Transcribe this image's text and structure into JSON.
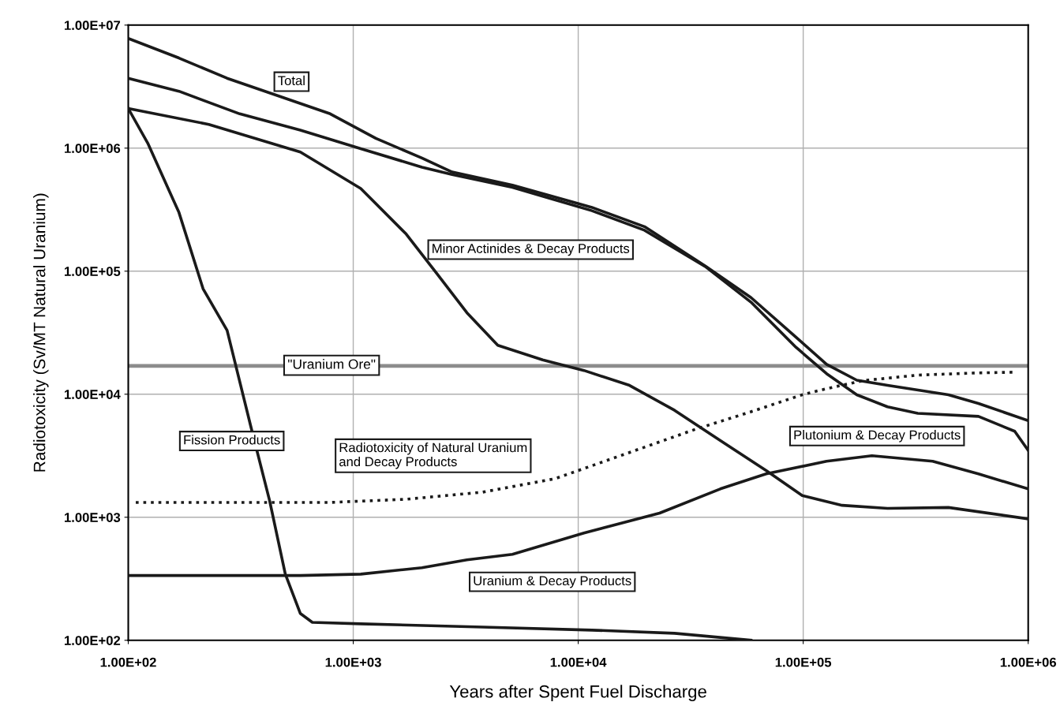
{
  "chart_data": {
    "type": "line",
    "xlabel": "Years after Spent Fuel Discharge",
    "ylabel": "Radiotoxicity (Sv/MT Natural Uranium)",
    "log": "xy",
    "xlim": [
      100,
      1000000
    ],
    "ylim": [
      100,
      10000000
    ],
    "xticks": [
      {
        "value": 100,
        "label": "1.00E+02"
      },
      {
        "value": 1000,
        "label": "1.00E+03"
      },
      {
        "value": 10000,
        "label": "1.00E+04"
      },
      {
        "value": 100000,
        "label": "1.00E+05"
      },
      {
        "value": 1000000,
        "label": "1.00E+06"
      }
    ],
    "yticks": [
      {
        "value": 100,
        "label": "1.00E+02"
      },
      {
        "value": 1000,
        "label": "1.00E+03"
      },
      {
        "value": 10000,
        "label": "1.00E+04"
      },
      {
        "value": 100000,
        "label": "1.00E+05"
      },
      {
        "value": 1000000,
        "label": "1.00E+06"
      },
      {
        "value": 10000000,
        "label": "1.00E+07"
      }
    ],
    "grid": true,
    "legend": false,
    "marker": "none",
    "line_style": "solid",
    "ref_lines": [
      {
        "axis": "y",
        "value": 17000,
        "label": "\"Uranium Ore\"",
        "color": "#8c8c8c",
        "line_style": "solid"
      }
    ],
    "series": [
      {
        "name": "Total",
        "color": "#1a1a1a",
        "x": [
          100,
          168,
          275,
          453,
          790,
          1260,
          2020,
          2750,
          5100,
          11500,
          19700,
          36700,
          58600,
          93000,
          127000,
          173000,
          237000,
          442000,
          601000,
          1000000
        ],
        "values": [
          7800000,
          5400000,
          3700000,
          2700000,
          1900000,
          1200000,
          830000,
          640000,
          500000,
          330000,
          230000,
          110000,
          61000,
          29000,
          17500,
          13000,
          11800,
          9900,
          8400,
          6100
        ]
      },
      {
        "name": "Minor Actinides & Decay Products",
        "color": "#1a1a1a",
        "x": [
          100,
          228,
          582,
          1080,
          1720,
          2350,
          3200,
          4390,
          6950,
          10600,
          16900,
          26800,
          42800,
          68400,
          99000,
          149000,
          237000,
          442000,
          1000000
        ],
        "values": [
          2100000,
          1560000,
          930000,
          470000,
          200000,
          96000,
          46000,
          25000,
          19000,
          15600,
          11800,
          7400,
          4200,
          2400,
          1500,
          1250,
          1180,
          1200,
          970
        ]
      },
      {
        "name": "Fission Products",
        "color": "#1a1a1a",
        "x": [
          100,
          122,
          168,
          215,
          275,
          352,
          425,
          499,
          582,
          658,
          1080,
          3760,
          11500,
          26800,
          58600
        ],
        "values": [
          2100000,
          1100000,
          300000,
          72000,
          33000,
          5300,
          1360,
          345,
          165,
          140,
          136,
          128,
          121,
          114,
          100
        ]
      },
      {
        "name": "Radiotoxicity of Natural Uranium\nand Decay Products",
        "color": "#1a1a1a",
        "line_style": "dotted",
        "x": [
          108,
          790,
          1720,
          3760,
          7900,
          33300,
          58600,
          99000,
          127000,
          185000,
          323000,
          601000,
          871000
        ],
        "values": [
          1320,
          1320,
          1400,
          1600,
          2060,
          5200,
          7200,
          9900,
          11100,
          12900,
          14300,
          14900,
          15100
        ]
      },
      {
        "name": "Uranium & Decay Products",
        "color": "#1a1a1a",
        "x": [
          100,
          582,
          1080,
          2020,
          3200,
          5100,
          10600,
          23000,
          42800,
          68400,
          127000,
          202000,
          376000,
          601000,
          1000000
        ],
        "values": [
          336,
          336,
          345,
          389,
          451,
          500,
          745,
          1080,
          1700,
          2250,
          2850,
          3160,
          2850,
          2250,
          1700
        ]
      },
      {
        "name": "Plutonium & Decay Products",
        "color": "#1a1a1a",
        "x": [
          100,
          168,
          313,
          582,
          1080,
          2020,
          2750,
          5100,
          11500,
          19700,
          36700,
          58600,
          93000,
          127000,
          173000,
          237000,
          323000,
          601000,
          871000,
          1000000
        ],
        "values": [
          3700000,
          2900000,
          1900000,
          1400000,
          990000,
          700000,
          610000,
          480000,
          310000,
          215000,
          109000,
          56000,
          24000,
          14700,
          9900,
          7900,
          7000,
          6600,
          5000,
          3500
        ]
      }
    ]
  }
}
